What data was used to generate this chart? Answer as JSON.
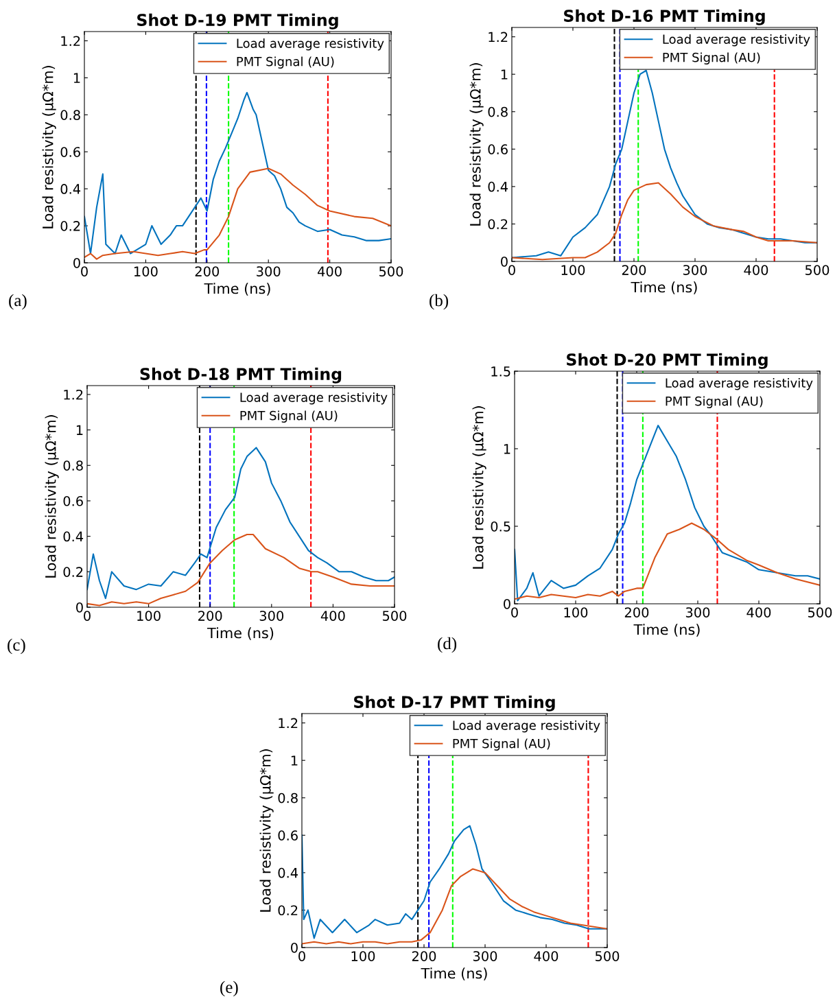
{
  "chart_data": [
    {
      "type": "line",
      "title": "Shot D-19 PMT Timing",
      "xlabel": "Time (ns)",
      "ylabel": "Load resistivity (μΩ*m)",
      "annotations": [
        "(a)"
      ],
      "xlim": [
        0,
        500
      ],
      "xticks": [
        0,
        100,
        200,
        300,
        400,
        500
      ],
      "ylim": [
        0,
        1.25
      ],
      "yticks": [
        0,
        0.2,
        0.4,
        0.6,
        0.8,
        1,
        1.2
      ],
      "legend": "top right",
      "grid": false,
      "line_style": "solid",
      "marker": "none",
      "ref_lines": [
        {
          "axis": "x",
          "value": 182,
          "color": "#000000",
          "line_style": "dashed"
        },
        {
          "axis": "x",
          "value": 199,
          "color": "#0000ff",
          "line_style": "dashed"
        },
        {
          "axis": "x",
          "value": 235,
          "color": "#00ff00",
          "line_style": "dashed"
        },
        {
          "axis": "x",
          "value": 397,
          "color": "#ff0000",
          "line_style": "dashed"
        }
      ],
      "series": [
        {
          "name": "Load average resistivity",
          "color": "#0072bd",
          "x": [
            0,
            10,
            20,
            30,
            35,
            50,
            60,
            75,
            100,
            110,
            125,
            140,
            150,
            160,
            170,
            180,
            190,
            200,
            210,
            220,
            230,
            240,
            250,
            260,
            265,
            275,
            280,
            290,
            300,
            310,
            320,
            330,
            340,
            350,
            360,
            380,
            400,
            420,
            440,
            460,
            480,
            500
          ],
          "values": [
            0.25,
            0.05,
            0.3,
            0.48,
            0.1,
            0.05,
            0.15,
            0.05,
            0.1,
            0.2,
            0.1,
            0.15,
            0.2,
            0.2,
            0.25,
            0.3,
            0.35,
            0.28,
            0.45,
            0.55,
            0.62,
            0.7,
            0.78,
            0.88,
            0.92,
            0.83,
            0.8,
            0.65,
            0.5,
            0.47,
            0.4,
            0.3,
            0.27,
            0.22,
            0.2,
            0.17,
            0.18,
            0.15,
            0.14,
            0.12,
            0.12,
            0.13
          ]
        },
        {
          "name": "PMT Signal (AU)",
          "color": "#d95319",
          "x": [
            0,
            10,
            20,
            30,
            50,
            80,
            100,
            120,
            140,
            160,
            180,
            195,
            200,
            220,
            235,
            250,
            270,
            300,
            320,
            340,
            360,
            380,
            400,
            440,
            470,
            500
          ],
          "values": [
            0.03,
            0.05,
            0.02,
            0.04,
            0.05,
            0.06,
            0.05,
            0.04,
            0.05,
            0.06,
            0.05,
            0.07,
            0.07,
            0.15,
            0.25,
            0.4,
            0.49,
            0.51,
            0.48,
            0.42,
            0.37,
            0.31,
            0.28,
            0.25,
            0.24,
            0.2
          ]
        }
      ]
    },
    {
      "type": "line",
      "title": "Shot D-16 PMT Timing",
      "xlabel": "Time (ns)",
      "ylabel": "Load resistivity (μΩ*m)",
      "annotations": [
        "(b)"
      ],
      "xlim": [
        0,
        500
      ],
      "xticks": [
        0,
        100,
        200,
        300,
        400,
        500
      ],
      "ylim": [
        0,
        1.25
      ],
      "yticks": [
        0,
        0.2,
        0.4,
        0.6,
        0.8,
        1,
        1.2
      ],
      "legend": "top right",
      "grid": false,
      "line_style": "solid",
      "marker": "none",
      "ref_lines": [
        {
          "axis": "x",
          "value": 168,
          "color": "#000000",
          "line_style": "dashed"
        },
        {
          "axis": "x",
          "value": 177,
          "color": "#0000ff",
          "line_style": "dashed"
        },
        {
          "axis": "x",
          "value": 207,
          "color": "#00ff00",
          "line_style": "dashed"
        },
        {
          "axis": "x",
          "value": 430,
          "color": "#ff0000",
          "line_style": "dashed"
        }
      ],
      "series": [
        {
          "name": "Load average resistivity",
          "color": "#0072bd",
          "x": [
            0,
            40,
            60,
            80,
            100,
            120,
            140,
            160,
            170,
            180,
            190,
            200,
            210,
            220,
            230,
            240,
            250,
            260,
            270,
            280,
            290,
            300,
            320,
            340,
            360,
            380,
            400,
            420,
            440,
            460,
            480,
            500
          ],
          "values": [
            0.02,
            0.03,
            0.05,
            0.03,
            0.13,
            0.18,
            0.25,
            0.4,
            0.52,
            0.6,
            0.75,
            0.9,
            1.0,
            1.02,
            0.9,
            0.75,
            0.6,
            0.5,
            0.42,
            0.35,
            0.3,
            0.25,
            0.2,
            0.18,
            0.17,
            0.15,
            0.13,
            0.12,
            0.12,
            0.11,
            0.1,
            0.1
          ]
        },
        {
          "name": "PMT Signal (AU)",
          "color": "#d95319",
          "x": [
            0,
            50,
            100,
            120,
            140,
            160,
            170,
            180,
            190,
            200,
            220,
            240,
            260,
            280,
            300,
            330,
            360,
            380,
            400,
            420,
            460,
            500
          ],
          "values": [
            0.02,
            0.01,
            0.02,
            0.02,
            0.05,
            0.1,
            0.15,
            0.25,
            0.33,
            0.38,
            0.41,
            0.42,
            0.36,
            0.29,
            0.24,
            0.19,
            0.17,
            0.16,
            0.13,
            0.11,
            0.11,
            0.1
          ]
        }
      ]
    },
    {
      "type": "line",
      "title": "Shot D-18 PMT Timing",
      "xlabel": "Time (ns)",
      "ylabel": "Load resistivity (μΩ*m)",
      "annotations": [
        "(c)"
      ],
      "xlim": [
        0,
        500
      ],
      "xticks": [
        0,
        100,
        200,
        300,
        400,
        500
      ],
      "ylim": [
        0,
        1.25
      ],
      "yticks": [
        0,
        0.2,
        0.4,
        0.6,
        0.8,
        1,
        1.2
      ],
      "legend": "top right",
      "grid": false,
      "line_style": "solid",
      "marker": "none",
      "ref_lines": [
        {
          "axis": "x",
          "value": 183,
          "color": "#000000",
          "line_style": "dashed"
        },
        {
          "axis": "x",
          "value": 200,
          "color": "#0000ff",
          "line_style": "dashed"
        },
        {
          "axis": "x",
          "value": 239,
          "color": "#00ff00",
          "line_style": "dashed"
        },
        {
          "axis": "x",
          "value": 364,
          "color": "#ff0000",
          "line_style": "dashed"
        }
      ],
      "series": [
        {
          "name": "Load average resistivity",
          "color": "#0072bd",
          "x": [
            0,
            10,
            20,
            30,
            40,
            60,
            80,
            100,
            120,
            140,
            160,
            175,
            185,
            195,
            210,
            225,
            240,
            250,
            260,
            275,
            290,
            300,
            315,
            330,
            345,
            360,
            375,
            390,
            410,
            430,
            450,
            470,
            490,
            500
          ],
          "values": [
            0.1,
            0.3,
            0.15,
            0.05,
            0.2,
            0.12,
            0.1,
            0.13,
            0.12,
            0.2,
            0.18,
            0.25,
            0.3,
            0.28,
            0.45,
            0.55,
            0.62,
            0.78,
            0.85,
            0.9,
            0.82,
            0.7,
            0.6,
            0.48,
            0.4,
            0.32,
            0.28,
            0.25,
            0.2,
            0.2,
            0.17,
            0.15,
            0.15,
            0.17
          ]
        },
        {
          "name": "PMT Signal (AU)",
          "color": "#d95319",
          "x": [
            0,
            20,
            40,
            60,
            80,
            100,
            120,
            140,
            160,
            180,
            200,
            220,
            240,
            260,
            270,
            290,
            320,
            345,
            365,
            375,
            400,
            430,
            460,
            500
          ],
          "values": [
            0.02,
            0.01,
            0.03,
            0.02,
            0.03,
            0.02,
            0.05,
            0.07,
            0.09,
            0.14,
            0.25,
            0.32,
            0.38,
            0.41,
            0.41,
            0.33,
            0.28,
            0.22,
            0.2,
            0.2,
            0.17,
            0.13,
            0.12,
            0.12
          ]
        }
      ]
    },
    {
      "type": "line",
      "title": "Shot D-20 PMT Timing",
      "xlabel": "Time (ns)",
      "ylabel": "Load resistivity (μΩ*m)",
      "annotations": [
        "(d)"
      ],
      "xlim": [
        0,
        500
      ],
      "xticks": [
        0,
        100,
        200,
        300,
        400,
        500
      ],
      "ylim": [
        0,
        1.5
      ],
      "yticks": [
        0,
        0.5,
        1,
        1.5
      ],
      "legend": "top right",
      "grid": false,
      "line_style": "solid",
      "marker": "none",
      "ref_lines": [
        {
          "axis": "x",
          "value": 168,
          "color": "#000000",
          "line_style": "dashed"
        },
        {
          "axis": "x",
          "value": 177,
          "color": "#0000ff",
          "line_style": "dashed"
        },
        {
          "axis": "x",
          "value": 210,
          "color": "#00ff00",
          "line_style": "dashed"
        },
        {
          "axis": "x",
          "value": 332,
          "color": "#ff0000",
          "line_style": "dashed"
        }
      ],
      "series": [
        {
          "name": "Load average resistivity",
          "color": "#0072bd",
          "x": [
            0,
            5,
            20,
            30,
            40,
            60,
            80,
            100,
            120,
            140,
            160,
            170,
            180,
            190,
            200,
            210,
            225,
            235,
            250,
            265,
            280,
            295,
            310,
            320,
            340,
            360,
            380,
            400,
            430,
            460,
            480,
            500
          ],
          "values": [
            0.35,
            0.02,
            0.1,
            0.2,
            0.05,
            0.15,
            0.1,
            0.12,
            0.18,
            0.23,
            0.35,
            0.45,
            0.52,
            0.65,
            0.8,
            0.9,
            1.05,
            1.15,
            1.05,
            0.95,
            0.8,
            0.62,
            0.5,
            0.45,
            0.33,
            0.3,
            0.27,
            0.22,
            0.2,
            0.18,
            0.18,
            0.16
          ]
        },
        {
          "name": "PMT Signal (AU)",
          "color": "#d95319",
          "x": [
            0,
            20,
            40,
            60,
            80,
            100,
            120,
            140,
            160,
            170,
            180,
            200,
            210,
            230,
            250,
            270,
            290,
            310,
            330,
            350,
            380,
            400,
            430,
            460,
            500
          ],
          "values": [
            0.03,
            0.05,
            0.04,
            0.06,
            0.05,
            0.04,
            0.06,
            0.05,
            0.08,
            0.05,
            0.08,
            0.1,
            0.1,
            0.3,
            0.45,
            0.48,
            0.52,
            0.48,
            0.42,
            0.35,
            0.28,
            0.25,
            0.2,
            0.16,
            0.12
          ]
        }
      ]
    },
    {
      "type": "line",
      "title": "Shot D-17 PMT Timing",
      "xlabel": "Time (ns)",
      "ylabel": "Load resistivity (μΩ*m)",
      "annotations": [
        "(e)"
      ],
      "xlim": [
        0,
        500
      ],
      "xticks": [
        0,
        100,
        200,
        300,
        400,
        500
      ],
      "ylim": [
        0,
        1.25
      ],
      "yticks": [
        0,
        0.2,
        0.4,
        0.6,
        0.8,
        1,
        1.2
      ],
      "legend": "top right",
      "grid": false,
      "line_style": "solid",
      "marker": "none",
      "ref_lines": [
        {
          "axis": "x",
          "value": 190,
          "color": "#000000",
          "line_style": "dashed"
        },
        {
          "axis": "x",
          "value": 208,
          "color": "#0000ff",
          "line_style": "dashed"
        },
        {
          "axis": "x",
          "value": 247,
          "color": "#00ff00",
          "line_style": "dashed"
        },
        {
          "axis": "x",
          "value": 469,
          "color": "#ff0000",
          "line_style": "dashed"
        }
      ],
      "series": [
        {
          "name": "Load average resistivity",
          "color": "#0072bd",
          "x": [
            0,
            3,
            10,
            20,
            30,
            50,
            70,
            90,
            110,
            120,
            140,
            160,
            170,
            180,
            190,
            200,
            210,
            225,
            240,
            250,
            265,
            275,
            285,
            295,
            310,
            330,
            350,
            370,
            390,
            410,
            430,
            450,
            470,
            490,
            500
          ],
          "values": [
            0.6,
            0.15,
            0.2,
            0.05,
            0.15,
            0.08,
            0.15,
            0.08,
            0.12,
            0.15,
            0.12,
            0.13,
            0.18,
            0.15,
            0.2,
            0.25,
            0.35,
            0.42,
            0.5,
            0.57,
            0.63,
            0.65,
            0.55,
            0.42,
            0.35,
            0.25,
            0.2,
            0.18,
            0.16,
            0.15,
            0.13,
            0.12,
            0.1,
            0.1,
            0.1
          ]
        },
        {
          "name": "PMT Signal (AU)",
          "color": "#d95319",
          "x": [
            0,
            20,
            40,
            60,
            80,
            100,
            120,
            140,
            160,
            180,
            195,
            210,
            230,
            245,
            260,
            280,
            300,
            320,
            340,
            360,
            380,
            400,
            420,
            440,
            460,
            500
          ],
          "values": [
            0.02,
            0.03,
            0.02,
            0.03,
            0.02,
            0.03,
            0.03,
            0.02,
            0.03,
            0.03,
            0.04,
            0.08,
            0.2,
            0.33,
            0.38,
            0.42,
            0.4,
            0.33,
            0.26,
            0.22,
            0.19,
            0.17,
            0.15,
            0.13,
            0.12,
            0.1
          ]
        }
      ]
    }
  ]
}
